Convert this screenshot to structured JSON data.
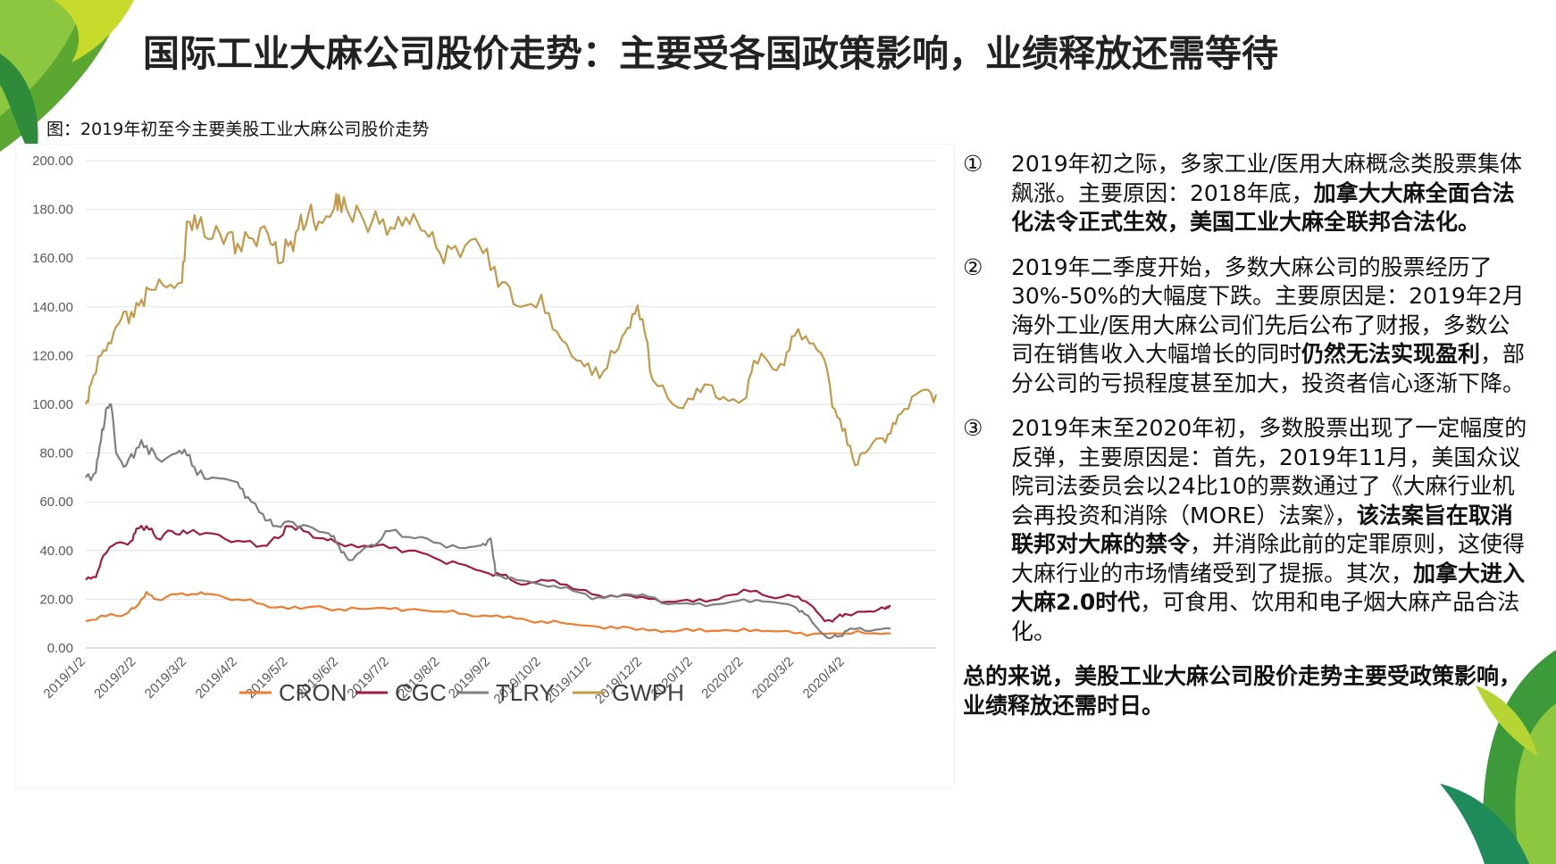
{
  "title": "国际工业大麻公司股价走势：主要受各国政策影响，业绩释放还需等待",
  "caption": "图：2019年初至今主要美股工业大麻公司股价走势",
  "points": [
    {
      "num": "①",
      "parts": [
        {
          "text": "2019年初之际，多家工业/医用大麻概念类股票集体飙涨。主要原因：2018年底，",
          "bold": false
        },
        {
          "text": "加拿大大麻全面合法化法令正式生效，美国工业大麻全联邦合法化。",
          "bold": true
        }
      ]
    },
    {
      "num": "②",
      "parts": [
        {
          "text": "2019年二季度开始，多数大麻公司的股票经历了30%-50%的大幅度下跌。主要原因是：2019年2月海外工业/医用大麻公司们先后公布了财报，多数公司在销售收入大幅增长的同时",
          "bold": false
        },
        {
          "text": "仍然无法实现盈利",
          "bold": true
        },
        {
          "text": "，部分公司的亏损程度甚至加大，投资者信心逐渐下降。",
          "bold": false
        }
      ]
    },
    {
      "num": "③",
      "parts": [
        {
          "text": "2019年末至2020年初，多数股票出现了一定幅度的反弹，主要原因是：首先，2019年11月，美国众议院司法委员会以24比10的票数通过了《大麻行业机会再投资和消除（MORE）法案》，",
          "bold": false
        },
        {
          "text": "该法案旨在取消联邦对大麻的禁令",
          "bold": true
        },
        {
          "text": "，并消除此前的定罪原则，这使得大麻行业的市场情绪受到了提振。其次，",
          "bold": false
        },
        {
          "text": "加拿大进入大麻2.0时代",
          "bold": true
        },
        {
          "text": "，可食用、饮用和电子烟大麻产品合法化。",
          "bold": false
        }
      ]
    }
  ],
  "summary": "总的来说，美股工业大麻公司股价走势主要受政策影响，业绩释放还需时日。",
  "chart_data": {
    "type": "line",
    "title": "",
    "xlabel": "",
    "ylabel": "",
    "ylim": [
      0,
      200
    ],
    "yticks": [
      "0.00",
      "20.00",
      "40.00",
      "60.00",
      "80.00",
      "100.00",
      "120.00",
      "140.00",
      "160.00",
      "180.00",
      "200.00"
    ],
    "categories": [
      "2019/1/2",
      "2019/2/2",
      "2019/3/2",
      "2019/4/2",
      "2019/5/2",
      "2019/6/2",
      "2019/7/2",
      "2019/8/2",
      "2019/9/2",
      "2019/10/2",
      "2019/11/2",
      "2019/12/2",
      "2020/1/2",
      "2020/2/2",
      "2020/3/2",
      "2020/4/2"
    ],
    "x_end": 15.9,
    "grid": true,
    "legend": "bottom",
    "series": [
      {
        "name": "CRON",
        "color": "#ED7D31",
        "points": [
          [
            0,
            11
          ],
          [
            0.4,
            13
          ],
          [
            0.8,
            14
          ],
          [
            1.0,
            17
          ],
          [
            1.2,
            23
          ],
          [
            1.4,
            20
          ],
          [
            1.8,
            22
          ],
          [
            2.2,
            22
          ],
          [
            2.5,
            22
          ],
          [
            3.0,
            20
          ],
          [
            3.5,
            18
          ],
          [
            4.0,
            16
          ],
          [
            4.5,
            17
          ],
          [
            5.0,
            16
          ],
          [
            5.5,
            16
          ],
          [
            6.0,
            16
          ],
          [
            6.5,
            16
          ],
          [
            7.0,
            15
          ],
          [
            7.5,
            14
          ],
          [
            8.0,
            13
          ],
          [
            8.5,
            12
          ],
          [
            9.0,
            11
          ],
          [
            9.5,
            10
          ],
          [
            10.0,
            9
          ],
          [
            10.5,
            8
          ],
          [
            11.0,
            8
          ],
          [
            11.5,
            7
          ],
          [
            12.0,
            7
          ],
          [
            12.5,
            7
          ],
          [
            13.0,
            8
          ],
          [
            13.5,
            7
          ],
          [
            14.0,
            6
          ],
          [
            14.5,
            6
          ],
          [
            15.0,
            6
          ],
          [
            15.5,
            6
          ],
          [
            15.9,
            6
          ]
        ]
      },
      {
        "name": "CGC",
        "color": "#A01C44",
        "points": [
          [
            0,
            28
          ],
          [
            0.2,
            29
          ],
          [
            0.35,
            38
          ],
          [
            0.6,
            43
          ],
          [
            0.9,
            44
          ],
          [
            1.0,
            49
          ],
          [
            1.2,
            50
          ],
          [
            1.4,
            45
          ],
          [
            1.7,
            48
          ],
          [
            2.0,
            47
          ],
          [
            2.5,
            47
          ],
          [
            3.0,
            44
          ],
          [
            3.5,
            42
          ],
          [
            3.8,
            45
          ],
          [
            4.0,
            50
          ],
          [
            4.3,
            48
          ],
          [
            4.7,
            45
          ],
          [
            5.0,
            43
          ],
          [
            5.5,
            42
          ],
          [
            6.0,
            41
          ],
          [
            6.5,
            40
          ],
          [
            7.0,
            36
          ],
          [
            7.5,
            34
          ],
          [
            7.9,
            31
          ],
          [
            8.2,
            30
          ],
          [
            8.6,
            26
          ],
          [
            9.0,
            28
          ],
          [
            9.5,
            26
          ],
          [
            10.0,
            22
          ],
          [
            10.5,
            21
          ],
          [
            11.0,
            21
          ],
          [
            11.5,
            19
          ],
          [
            12.0,
            19
          ],
          [
            12.5,
            20
          ],
          [
            13.0,
            24
          ],
          [
            13.5,
            21
          ],
          [
            14.0,
            21
          ],
          [
            14.3,
            18
          ],
          [
            14.6,
            11
          ],
          [
            14.8,
            12
          ],
          [
            15.0,
            14
          ],
          [
            15.5,
            15
          ],
          [
            15.8,
            16
          ],
          [
            15.9,
            17
          ]
        ]
      },
      {
        "name": "TLRY",
        "color": "#7F7F7F",
        "points": [
          [
            0,
            70
          ],
          [
            0.2,
            72
          ],
          [
            0.3,
            85
          ],
          [
            0.4,
            98
          ],
          [
            0.5,
            100
          ],
          [
            0.6,
            80
          ],
          [
            0.8,
            75
          ],
          [
            1.0,
            82
          ],
          [
            1.2,
            83
          ],
          [
            1.4,
            78
          ],
          [
            1.8,
            80
          ],
          [
            2.0,
            79
          ],
          [
            2.2,
            71
          ],
          [
            2.5,
            70
          ],
          [
            3.0,
            68
          ],
          [
            3.2,
            62
          ],
          [
            3.5,
            55
          ],
          [
            3.7,
            50
          ],
          [
            4.0,
            52
          ],
          [
            4.4,
            50
          ],
          [
            4.8,
            47
          ],
          [
            5.0,
            42
          ],
          [
            5.2,
            36
          ],
          [
            5.5,
            41
          ],
          [
            5.7,
            42
          ],
          [
            6.0,
            48
          ],
          [
            6.5,
            45
          ],
          [
            7.0,
            43
          ],
          [
            7.5,
            41
          ],
          [
            7.8,
            42
          ],
          [
            8.0,
            45
          ],
          [
            8.1,
            30
          ],
          [
            8.5,
            28
          ],
          [
            9.0,
            26
          ],
          [
            9.5,
            25
          ],
          [
            10.0,
            20
          ],
          [
            10.5,
            21
          ],
          [
            11.0,
            22
          ],
          [
            11.5,
            18
          ],
          [
            12.0,
            18
          ],
          [
            12.5,
            18
          ],
          [
            13.0,
            20
          ],
          [
            13.5,
            19
          ],
          [
            14.0,
            17
          ],
          [
            14.2,
            14
          ],
          [
            14.5,
            7
          ],
          [
            14.7,
            4
          ],
          [
            14.9,
            5
          ],
          [
            15.1,
            8
          ],
          [
            15.5,
            7
          ],
          [
            15.9,
            8
          ]
        ]
      },
      {
        "name": "GWPH",
        "color": "#C49A4A",
        "points": [
          [
            0,
            100
          ],
          [
            0.1,
            108
          ],
          [
            0.3,
            120
          ],
          [
            0.5,
            125
          ],
          [
            0.7,
            135
          ],
          [
            0.9,
            138
          ],
          [
            1.1,
            143
          ],
          [
            1.3,
            147
          ],
          [
            1.6,
            148
          ],
          [
            1.9,
            150
          ],
          [
            2.0,
            175
          ],
          [
            2.2,
            172
          ],
          [
            2.5,
            168
          ],
          [
            2.8,
            170
          ],
          [
            3.0,
            166
          ],
          [
            3.3,
            168
          ],
          [
            3.6,
            170
          ],
          [
            3.8,
            158
          ],
          [
            4.0,
            165
          ],
          [
            4.2,
            172
          ],
          [
            4.4,
            178
          ],
          [
            4.6,
            175
          ],
          [
            4.9,
            180
          ],
          [
            5.0,
            186
          ],
          [
            5.2,
            178
          ],
          [
            5.5,
            175
          ],
          [
            5.8,
            174
          ],
          [
            6.1,
            172
          ],
          [
            6.4,
            174
          ],
          [
            6.7,
            171
          ],
          [
            7.0,
            162
          ],
          [
            7.3,
            165
          ],
          [
            7.7,
            168
          ],
          [
            8.0,
            155
          ],
          [
            8.3,
            150
          ],
          [
            8.6,
            140
          ],
          [
            9.0,
            145
          ],
          [
            9.3,
            130
          ],
          [
            9.7,
            118
          ],
          [
            10.0,
            112
          ],
          [
            10.3,
            115
          ],
          [
            10.6,
            128
          ],
          [
            10.8,
            137
          ],
          [
            11.0,
            135
          ],
          [
            11.2,
            110
          ],
          [
            11.6,
            100
          ],
          [
            12.0,
            102
          ],
          [
            12.3,
            108
          ],
          [
            12.6,
            103
          ],
          [
            13.0,
            102
          ],
          [
            13.2,
            118
          ],
          [
            13.5,
            117
          ],
          [
            13.8,
            116
          ],
          [
            14.0,
            128
          ],
          [
            14.3,
            125
          ],
          [
            14.6,
            118
          ],
          [
            14.8,
            98
          ],
          [
            15.0,
            90
          ],
          [
            15.2,
            75
          ],
          [
            15.4,
            80
          ],
          [
            15.7,
            86
          ],
          [
            15.9,
            88
          ],
          [
            16.1,
            96
          ],
          [
            16.4,
            104
          ],
          [
            16.6,
            106
          ],
          [
            16.8,
            104
          ]
        ]
      }
    ]
  }
}
